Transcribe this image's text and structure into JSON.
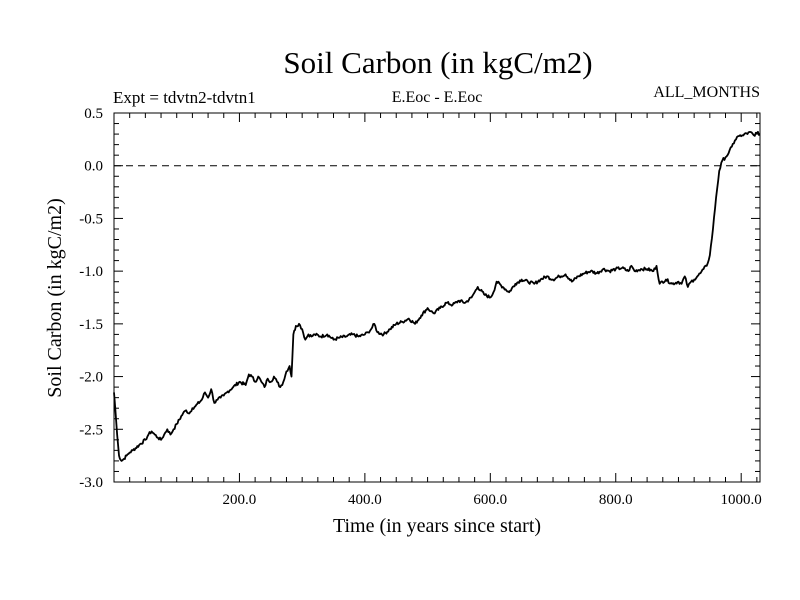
{
  "header": {
    "expt": "Expt = tdvtn2-tdvtn1",
    "region": "E.Eoc - E.Eoc",
    "months": "ALL_MONTHS"
  },
  "chart_data": {
    "type": "line",
    "title": "Soil Carbon (in kgC/m2)",
    "xlabel": "Time (in years since start)",
    "ylabel": "Soil Carbon (in kgC/m2)",
    "xlim": [
      0,
      1030
    ],
    "ylim": [
      -3.0,
      0.5
    ],
    "grid": false,
    "reference_line": {
      "y": 0.0,
      "style": "dashed"
    },
    "x_ticks": [
      {
        "value": 200,
        "label": "200.0"
      },
      {
        "value": 400,
        "label": "400.0"
      },
      {
        "value": 600,
        "label": "600.0"
      },
      {
        "value": 800,
        "label": "800.0"
      },
      {
        "value": 1000,
        "label": "1000.0"
      }
    ],
    "y_ticks": [
      {
        "value": 0.5,
        "label": "0.5"
      },
      {
        "value": 0.0,
        "label": "0.0"
      },
      {
        "value": -0.5,
        "label": "-0.5"
      },
      {
        "value": -1.0,
        "label": "-1.0"
      },
      {
        "value": -1.5,
        "label": "-1.5"
      },
      {
        "value": -2.0,
        "label": "-2.0"
      },
      {
        "value": -2.5,
        "label": "-2.5"
      },
      {
        "value": -3.0,
        "label": "-3.0"
      }
    ],
    "series": [
      {
        "name": "Soil Carbon",
        "x": [
          0,
          2,
          5,
          8,
          12,
          16,
          20,
          25,
          30,
          40,
          50,
          55,
          60,
          65,
          70,
          75,
          80,
          85,
          90,
          95,
          100,
          110,
          115,
          120,
          125,
          130,
          140,
          145,
          150,
          155,
          160,
          165,
          170,
          175,
          180,
          190,
          200,
          210,
          215,
          220,
          225,
          230,
          235,
          240,
          245,
          250,
          255,
          260,
          265,
          270,
          275,
          280,
          283,
          286,
          290,
          295,
          300,
          305,
          310,
          315,
          320,
          330,
          340,
          350,
          360,
          370,
          380,
          390,
          400,
          405,
          410,
          415,
          420,
          430,
          440,
          450,
          460,
          470,
          480,
          490,
          500,
          505,
          510,
          520,
          530,
          540,
          550,
          560,
          570,
          575,
          580,
          590,
          600,
          605,
          610,
          620,
          630,
          640,
          650,
          660,
          670,
          680,
          690,
          700,
          710,
          720,
          730,
          740,
          750,
          760,
          770,
          780,
          790,
          800,
          810,
          820,
          825,
          830,
          840,
          850,
          860,
          865,
          870,
          880,
          890,
          900,
          905,
          910,
          915,
          920,
          925,
          930,
          935,
          940,
          945,
          950,
          955,
          960,
          965,
          970,
          975,
          980,
          985,
          990,
          995,
          1000,
          1005,
          1010,
          1015,
          1020,
          1025,
          1030
        ],
        "values": [
          -2.15,
          -2.3,
          -2.55,
          -2.75,
          -2.8,
          -2.78,
          -2.75,
          -2.72,
          -2.7,
          -2.65,
          -2.6,
          -2.55,
          -2.52,
          -2.55,
          -2.58,
          -2.6,
          -2.55,
          -2.5,
          -2.55,
          -2.5,
          -2.45,
          -2.35,
          -2.32,
          -2.35,
          -2.3,
          -2.28,
          -2.22,
          -2.15,
          -2.2,
          -2.12,
          -2.25,
          -2.22,
          -2.2,
          -2.18,
          -2.15,
          -2.1,
          -2.05,
          -2.08,
          -1.98,
          -2.0,
          -2.05,
          -2.0,
          -2.05,
          -2.1,
          -2.02,
          -2.05,
          -2.0,
          -2.05,
          -2.1,
          -2.05,
          -1.95,
          -1.9,
          -2.0,
          -1.6,
          -1.52,
          -1.5,
          -1.55,
          -1.65,
          -1.6,
          -1.62,
          -1.6,
          -1.62,
          -1.6,
          -1.65,
          -1.63,
          -1.62,
          -1.6,
          -1.62,
          -1.6,
          -1.58,
          -1.55,
          -1.5,
          -1.58,
          -1.6,
          -1.55,
          -1.5,
          -1.48,
          -1.45,
          -1.5,
          -1.42,
          -1.35,
          -1.38,
          -1.4,
          -1.35,
          -1.3,
          -1.32,
          -1.28,
          -1.3,
          -1.25,
          -1.2,
          -1.15,
          -1.22,
          -1.25,
          -1.2,
          -1.1,
          -1.15,
          -1.2,
          -1.12,
          -1.08,
          -1.1,
          -1.12,
          -1.08,
          -1.05,
          -1.08,
          -1.05,
          -1.03,
          -1.1,
          -1.05,
          -1.02,
          -1.0,
          -1.02,
          -0.98,
          -1.0,
          -0.98,
          -0.97,
          -1.0,
          -0.95,
          -1.0,
          -0.98,
          -0.98,
          -1.0,
          -0.95,
          -1.12,
          -1.08,
          -1.12,
          -1.1,
          -1.12,
          -1.05,
          -1.15,
          -1.1,
          -1.08,
          -1.05,
          -1.02,
          -0.98,
          -0.95,
          -0.85,
          -0.6,
          -0.3,
          -0.05,
          0.05,
          0.08,
          0.12,
          0.18,
          0.24,
          0.28,
          0.28,
          0.3,
          0.3,
          0.32,
          0.29,
          0.31,
          0.3
        ]
      }
    ]
  }
}
